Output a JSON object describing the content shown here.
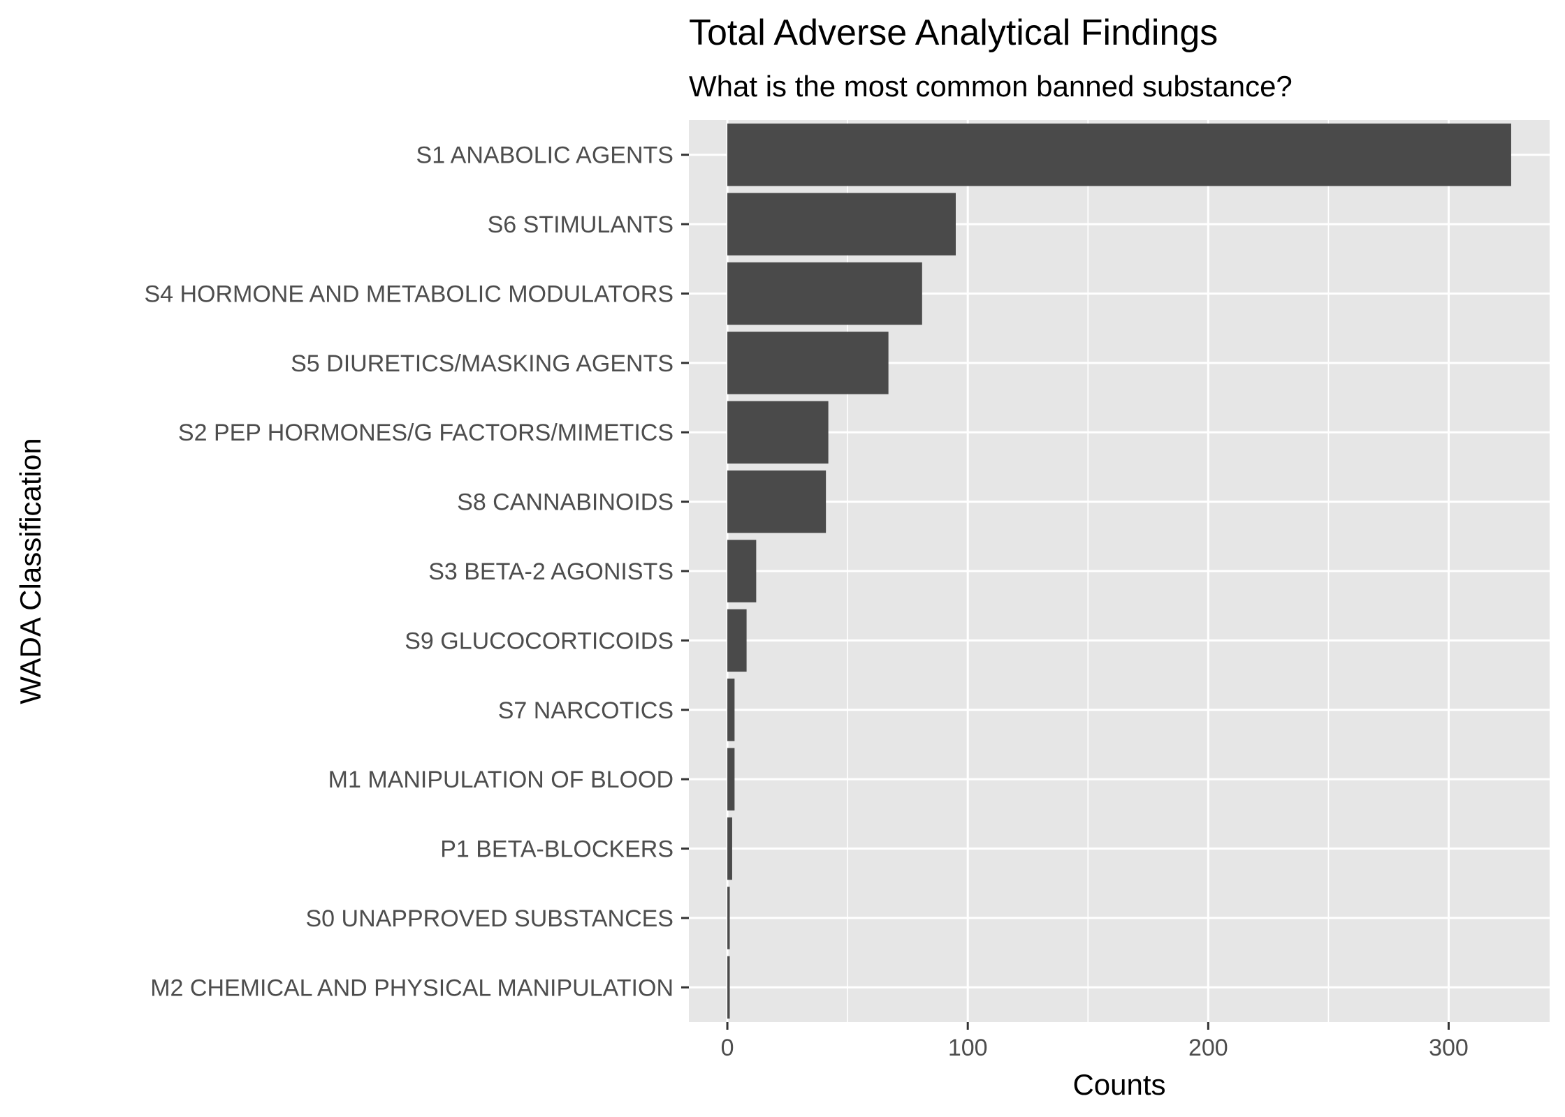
{
  "chart_data": {
    "type": "bar",
    "orientation": "horizontal",
    "title": "Total Adverse Analytical Findings",
    "subtitle": "What is the most common banned substance?",
    "xlabel": "Counts",
    "ylabel": "WADA Classification",
    "categories": [
      "S1 ANABOLIC AGENTS",
      "S6 STIMULANTS",
      "S4 HORMONE AND METABOLIC MODULATORS",
      "S5 DIURETICS/MASKING AGENTS",
      "S2 PEP HORMONES/G FACTORS/MIMETICS",
      "S8 CANNABINOIDS",
      "S3 BETA-2 AGONISTS",
      "S9 GLUCOCORTICOIDS",
      "S7 NARCOTICS",
      "M1 MANIPULATION OF BLOOD",
      "P1 BETA-BLOCKERS",
      "S0 UNAPPROVED SUBSTANCES",
      "M2 CHEMICAL AND PHYSICAL MANIPULATION"
    ],
    "values": [
      326,
      95,
      81,
      67,
      42,
      41,
      12,
      8,
      3,
      3,
      2,
      1,
      1
    ],
    "xlim": [
      -16,
      342
    ],
    "xticks": [
      0,
      100,
      200,
      300
    ],
    "xtick_labels": [
      "0",
      "100",
      "200",
      "300"
    ],
    "grid": true,
    "bar_color": "#4a4a4a",
    "panel_color": "#e6e6e6",
    "grid_color": "#ffffff"
  }
}
